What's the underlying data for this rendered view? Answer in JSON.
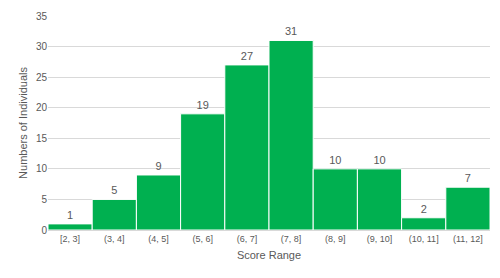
{
  "chart_data": {
    "type": "bar",
    "x_label": "Score Range",
    "y_label": "Numbers of Individuals",
    "categories": [
      "[2, 3]",
      "(3, 4]",
      "(4, 5]",
      "(5, 6]",
      "(6, 7]",
      "(7, 8]",
      "(8, 9]",
      "(9, 10]",
      "(10, 11]",
      "(11, 12]"
    ],
    "values": [
      1,
      5,
      9,
      19,
      27,
      31,
      10,
      10,
      2,
      7
    ],
    "color": "#00b050",
    "ylim": [
      0,
      35
    ],
    "yticks": [
      0,
      5,
      10,
      15,
      20,
      25,
      30,
      35
    ],
    "grid": true,
    "data_labels": true
  }
}
